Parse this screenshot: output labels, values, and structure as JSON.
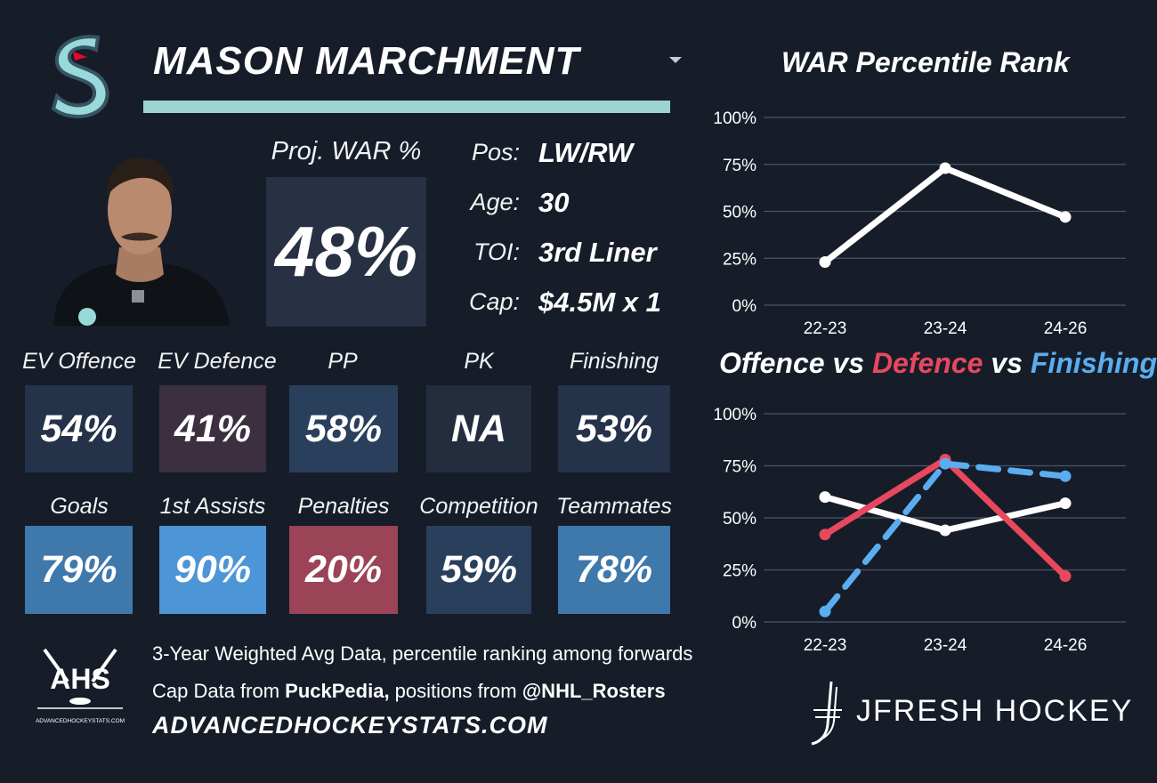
{
  "header": {
    "player_name": "MASON MARCHMENT"
  },
  "proj_war": {
    "label": "Proj. WAR %",
    "value": "48%"
  },
  "info": [
    {
      "label": "Pos:",
      "value": "LW/RW"
    },
    {
      "label": "Age:",
      "value": "30"
    },
    {
      "label": "TOI:",
      "value": "3rd Liner"
    },
    {
      "label": "Cap:",
      "value": "$4.5M x 1"
    }
  ],
  "stats_row1": [
    {
      "label": "EV Offence",
      "value": "54%",
      "color": "#24324a"
    },
    {
      "label": "EV Defence",
      "value": "41%",
      "color": "#3c2f40"
    },
    {
      "label": "PP",
      "value": "58%",
      "color": "#2a3f5c"
    },
    {
      "label": "PK",
      "value": "NA",
      "color": "#232d3d"
    },
    {
      "label": "Finishing",
      "value": "53%",
      "color": "#24324a"
    }
  ],
  "stats_row2": [
    {
      "label": "Goals",
      "value": "79%",
      "color": "#3f78ab"
    },
    {
      "label": "1st Assists",
      "value": "90%",
      "color": "#4c95d6"
    },
    {
      "label": "Penalties",
      "value": "20%",
      "color": "#9b4357"
    },
    {
      "label": "Competition",
      "value": "59%",
      "color": "#2a3f5c"
    },
    {
      "label": "Teammates",
      "value": "78%",
      "color": "#3f78ab"
    }
  ],
  "footer": {
    "ahs_text": "AHS",
    "ahs_small": "ADVANCEDHOCKEYSTATS.COM",
    "line1": "3-Year Weighted Avg Data, percentile ranking among forwards",
    "line2_pre": "Cap Data from ",
    "line2_bold1": "PuckPedia,",
    "line2_mid": " positions from ",
    "line2_bold2": "@NHL_Rosters",
    "url": "ADVANCEDHOCKEYSTATS.COM",
    "brand": "JFRESH HOCKEY"
  },
  "chart_data": [
    {
      "type": "line",
      "title": "WAR Percentile Rank",
      "categories": [
        "22-23",
        "23-24",
        "24-26"
      ],
      "yticks": [
        "0%",
        "25%",
        "50%",
        "75%",
        "100%"
      ],
      "ylim": [
        0,
        100
      ],
      "grid": true,
      "series": [
        {
          "values": [
            23,
            73,
            47
          ],
          "color": "#ffffff",
          "dashed": false
        }
      ]
    },
    {
      "type": "line",
      "title_parts": [
        "Offence",
        " vs ",
        "Defence",
        " vs ",
        "Finishing"
      ],
      "title_colors": [
        "#ffffff",
        "#ffffff",
        "#e8485e",
        "#ffffff",
        "#5aaef0"
      ],
      "categories": [
        "22-23",
        "23-24",
        "24-26"
      ],
      "yticks": [
        "0%",
        "25%",
        "50%",
        "75%",
        "100%"
      ],
      "ylim": [
        0,
        100
      ],
      "grid": true,
      "series": [
        {
          "name": "Offence",
          "values": [
            60,
            44,
            57
          ],
          "color": "#ffffff",
          "dashed": false
        },
        {
          "name": "Defence",
          "values": [
            42,
            78,
            22
          ],
          "color": "#e8485e",
          "dashed": false
        },
        {
          "name": "Finishing",
          "values": [
            5,
            76,
            70
          ],
          "color": "#5aaef0",
          "dashed": true
        }
      ]
    }
  ]
}
